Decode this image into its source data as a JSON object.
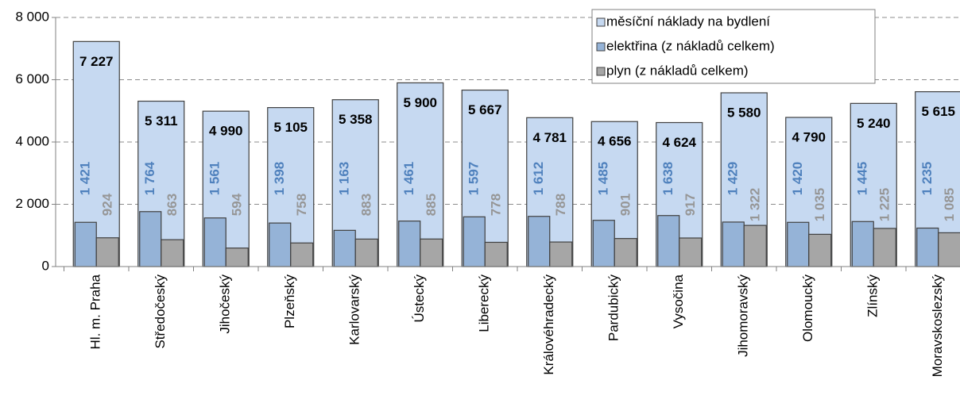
{
  "chart_data": {
    "type": "bar",
    "categories": [
      "Hl. m. Praha",
      "Středočeský",
      "Jihočeský",
      "Plzeňský",
      "Karlovarský",
      "Ústecký",
      "Liberecký",
      "Královéhradecký",
      "Pardubický",
      "Vysočina",
      "Jihomoravský",
      "Olomoucký",
      "Zlínský",
      "Moravskoslezský"
    ],
    "series": [
      {
        "name": "měsíční náklady na bydlení",
        "color": "#c6d9f1",
        "label_color": "#000000",
        "values": [
          7227,
          5311,
          4990,
          5105,
          5358,
          5900,
          5667,
          4781,
          4656,
          4624,
          5580,
          4790,
          5240,
          5615
        ],
        "value_labels": [
          "7 227",
          "5 311",
          "4 990",
          "5 105",
          "5 358",
          "5 900",
          "5 667",
          "4 781",
          "4 656",
          "4 624",
          "5 580",
          "4 790",
          "5 240",
          "5 615"
        ]
      },
      {
        "name": "elektřina (z nákladů celkem)",
        "color": "#95b3d7",
        "label_color": "#4f81bd",
        "values": [
          1421,
          1764,
          1561,
          1398,
          1163,
          1461,
          1597,
          1612,
          1485,
          1638,
          1429,
          1420,
          1445,
          1235
        ],
        "value_labels": [
          "1 421",
          "1 764",
          "1 561",
          "1 398",
          "1 163",
          "1 461",
          "1 597",
          "1 612",
          "1 485",
          "1 638",
          "1 429",
          "1 420",
          "1 445",
          "1 235"
        ]
      },
      {
        "name": "plyn (z nákladů celkem)",
        "color": "#a6a6a6",
        "label_color": "#969696",
        "values": [
          924,
          863,
          594,
          758,
          883,
          885,
          778,
          788,
          901,
          917,
          1322,
          1035,
          1225,
          1085
        ],
        "value_labels": [
          "924",
          "863",
          "594",
          "758",
          "883",
          "885",
          "778",
          "788",
          "901",
          "917",
          "1 322",
          "1 035",
          "1 225",
          "1 085"
        ]
      }
    ],
    "ylim": [
      0,
      8000
    ],
    "yticks": [
      0,
      {
        "value": 2000,
        "label": "2 000"
      },
      {
        "value": 4000,
        "label": "4 000"
      },
      {
        "value": 6000,
        "label": "6 000"
      },
      {
        "value": 8000,
        "label": "8 000"
      }
    ],
    "grid": true,
    "legend": "upper right"
  }
}
